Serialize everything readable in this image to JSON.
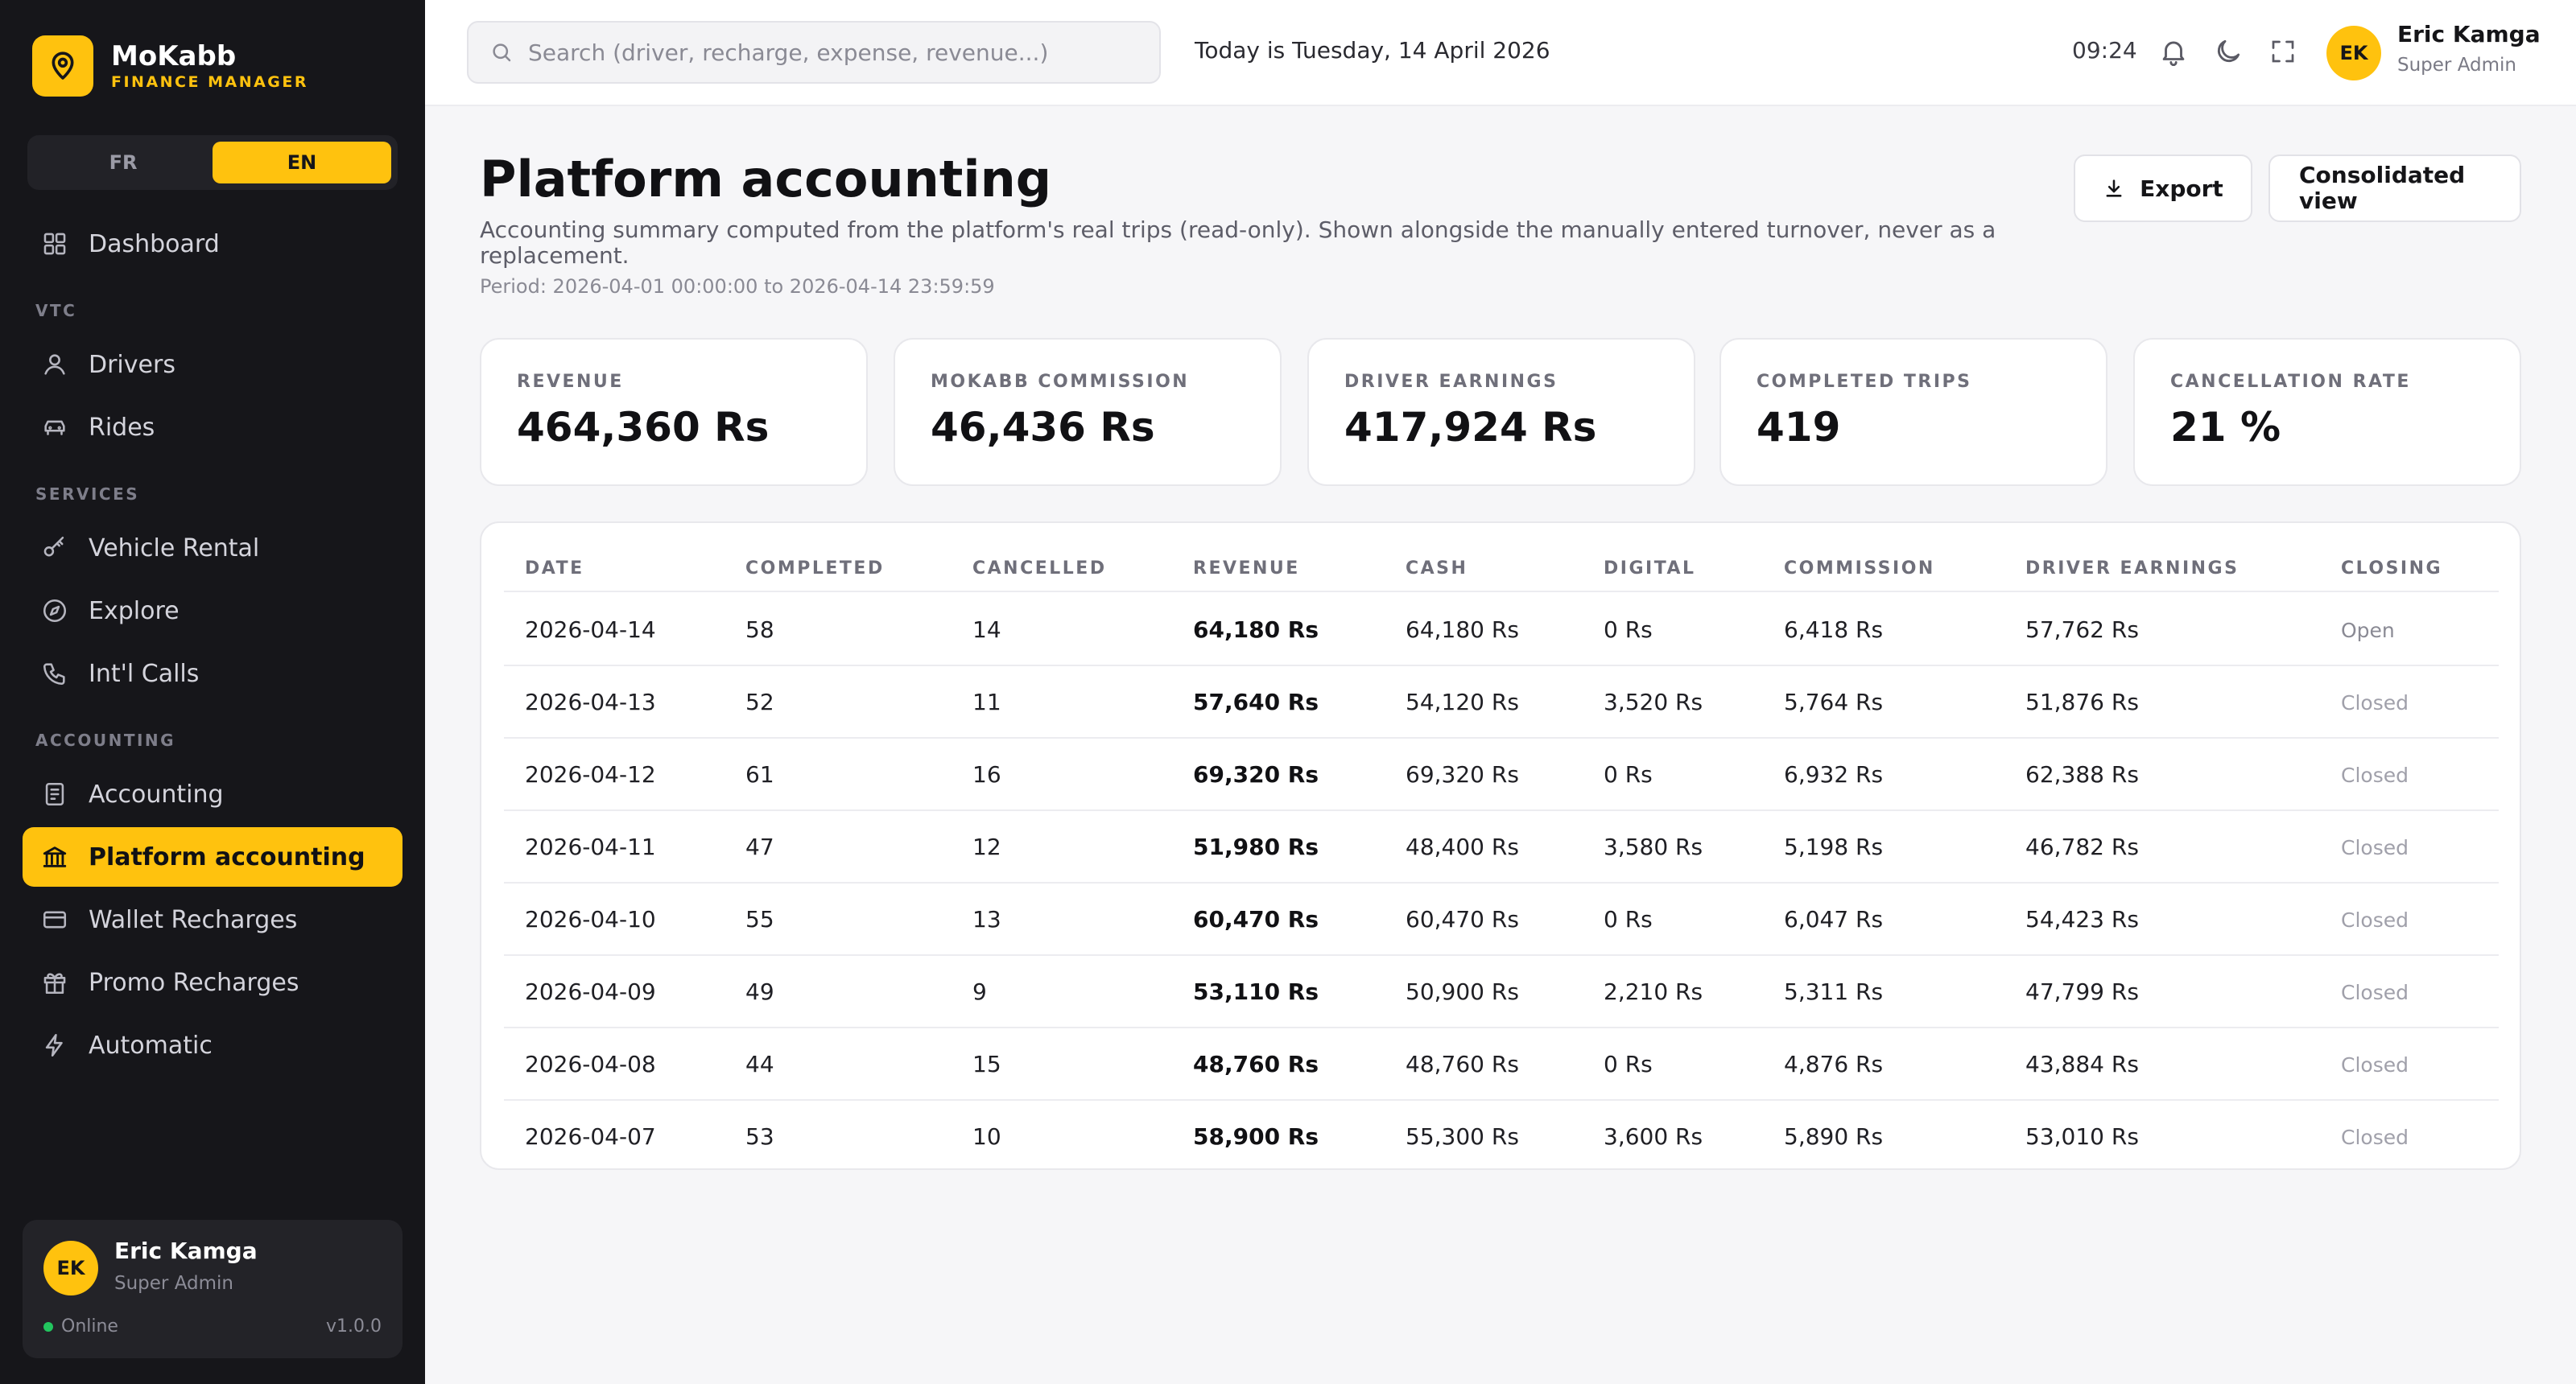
{
  "brand": {
    "name": "MoKabb",
    "subtitle": "FINANCE MANAGER"
  },
  "languages": [
    {
      "label": "FR",
      "active": false
    },
    {
      "label": "EN",
      "active": true
    }
  ],
  "nav": {
    "dashboard": "Dashboard",
    "section_vtc": "VTC",
    "drivers": "Drivers",
    "rides": "Rides",
    "section_services": "SERVICES",
    "vehicle_rental": "Vehicle Rental",
    "explore": "Explore",
    "intl_calls": "Int'l Calls",
    "section_accounting": "ACCOUNTING",
    "accounting": "Accounting",
    "platform_accounting": "Platform accounting",
    "wallet_recharges": "Wallet Recharges",
    "promo_recharges": "Promo Recharges",
    "automatic": "Automatic"
  },
  "user": {
    "initials": "EK",
    "name": "Eric Kamga",
    "role": "Super Admin",
    "status": "Online",
    "version": "v1.0.0"
  },
  "header": {
    "search_placeholder": "Search (driver, recharge, expense, revenue...)",
    "today": "Today is Tuesday, 14 April 2026",
    "time": "09:24"
  },
  "page": {
    "title": "Platform accounting",
    "description": "Accounting summary computed from the platform's real trips (read-only). Shown alongside the manually entered turnover, never as a replacement.",
    "period": "Period: 2026-04-01 00:00:00 to 2026-04-14 23:59:59",
    "export_label": "Export",
    "consolidated_label": "Consolidated view"
  },
  "stats": [
    {
      "label": "REVENUE",
      "value": "464,360 Rs"
    },
    {
      "label": "MOKABB COMMISSION",
      "value": "46,436 Rs"
    },
    {
      "label": "DRIVER EARNINGS",
      "value": "417,924 Rs"
    },
    {
      "label": "COMPLETED TRIPS",
      "value": "419"
    },
    {
      "label": "CANCELLATION RATE",
      "value": "21 %"
    }
  ],
  "table": {
    "columns": [
      "DATE",
      "COMPLETED",
      "CANCELLED",
      "REVENUE",
      "CASH",
      "DIGITAL",
      "COMMISSION",
      "DRIVER EARNINGS",
      "CLOSING"
    ],
    "rows": [
      [
        "2026-04-14",
        "58",
        "14",
        "64,180 Rs",
        "64,180 Rs",
        "0 Rs",
        "6,418 Rs",
        "57,762 Rs",
        "Open"
      ],
      [
        "2026-04-13",
        "52",
        "11",
        "57,640 Rs",
        "54,120 Rs",
        "3,520 Rs",
        "5,764 Rs",
        "51,876 Rs",
        "Closed"
      ],
      [
        "2026-04-12",
        "61",
        "16",
        "69,320 Rs",
        "69,320 Rs",
        "0 Rs",
        "6,932 Rs",
        "62,388 Rs",
        "Closed"
      ],
      [
        "2026-04-11",
        "47",
        "12",
        "51,980 Rs",
        "48,400 Rs",
        "3,580 Rs",
        "5,198 Rs",
        "46,782 Rs",
        "Closed"
      ],
      [
        "2026-04-10",
        "55",
        "13",
        "60,470 Rs",
        "60,470 Rs",
        "0 Rs",
        "6,047 Rs",
        "54,423 Rs",
        "Closed"
      ],
      [
        "2026-04-09",
        "49",
        "9",
        "53,110 Rs",
        "50,900 Rs",
        "2,210 Rs",
        "5,311 Rs",
        "47,799 Rs",
        "Closed"
      ],
      [
        "2026-04-08",
        "44",
        "15",
        "48,760 Rs",
        "48,760 Rs",
        "0 Rs",
        "4,876 Rs",
        "43,884 Rs",
        "Closed"
      ],
      [
        "2026-04-07",
        "53",
        "10",
        "58,900 Rs",
        "55,300 Rs",
        "3,600 Rs",
        "5,890 Rs",
        "53,010 Rs",
        "Closed"
      ]
    ]
  },
  "colors": {
    "accent": "#ffc20e",
    "sidebar_bg": "#16161a",
    "page_bg": "#f6f6f8",
    "online": "#22c55e"
  },
  "icons": [
    "map-pin-icon",
    "grid-icon",
    "user-icon",
    "car-icon",
    "key-icon",
    "compass-icon",
    "phone-icon",
    "receipt-icon",
    "bank-icon",
    "card-icon",
    "gift-icon",
    "bolt-icon",
    "search-icon",
    "bell-icon",
    "moon-icon",
    "fullscreen-icon",
    "download-icon"
  ]
}
